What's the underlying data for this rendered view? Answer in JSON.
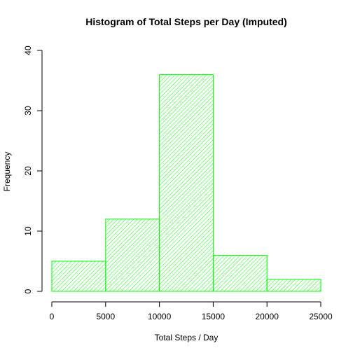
{
  "chart_data": {
    "type": "bar",
    "title": "Histogram of Total Steps per Day (Imputed)",
    "xlabel": "Total Steps / Day",
    "ylabel": "Frequency",
    "bins": [
      {
        "from": 0,
        "to": 5000,
        "count": 5
      },
      {
        "from": 5000,
        "to": 10000,
        "count": 12
      },
      {
        "from": 10000,
        "to": 15000,
        "count": 36
      },
      {
        "from": 15000,
        "to": 20000,
        "count": 6
      },
      {
        "from": 20000,
        "to": 25000,
        "count": 2
      }
    ],
    "xlim": [
      0,
      25000
    ],
    "ylim": [
      0,
      40
    ],
    "xticks": [
      0,
      5000,
      10000,
      15000,
      20000,
      25000
    ],
    "yticks": [
      0,
      10,
      20,
      30,
      40
    ],
    "bar_color": "#00ff00",
    "fill_pattern": "diagonal-hatch",
    "grid": false,
    "legend": "none"
  }
}
